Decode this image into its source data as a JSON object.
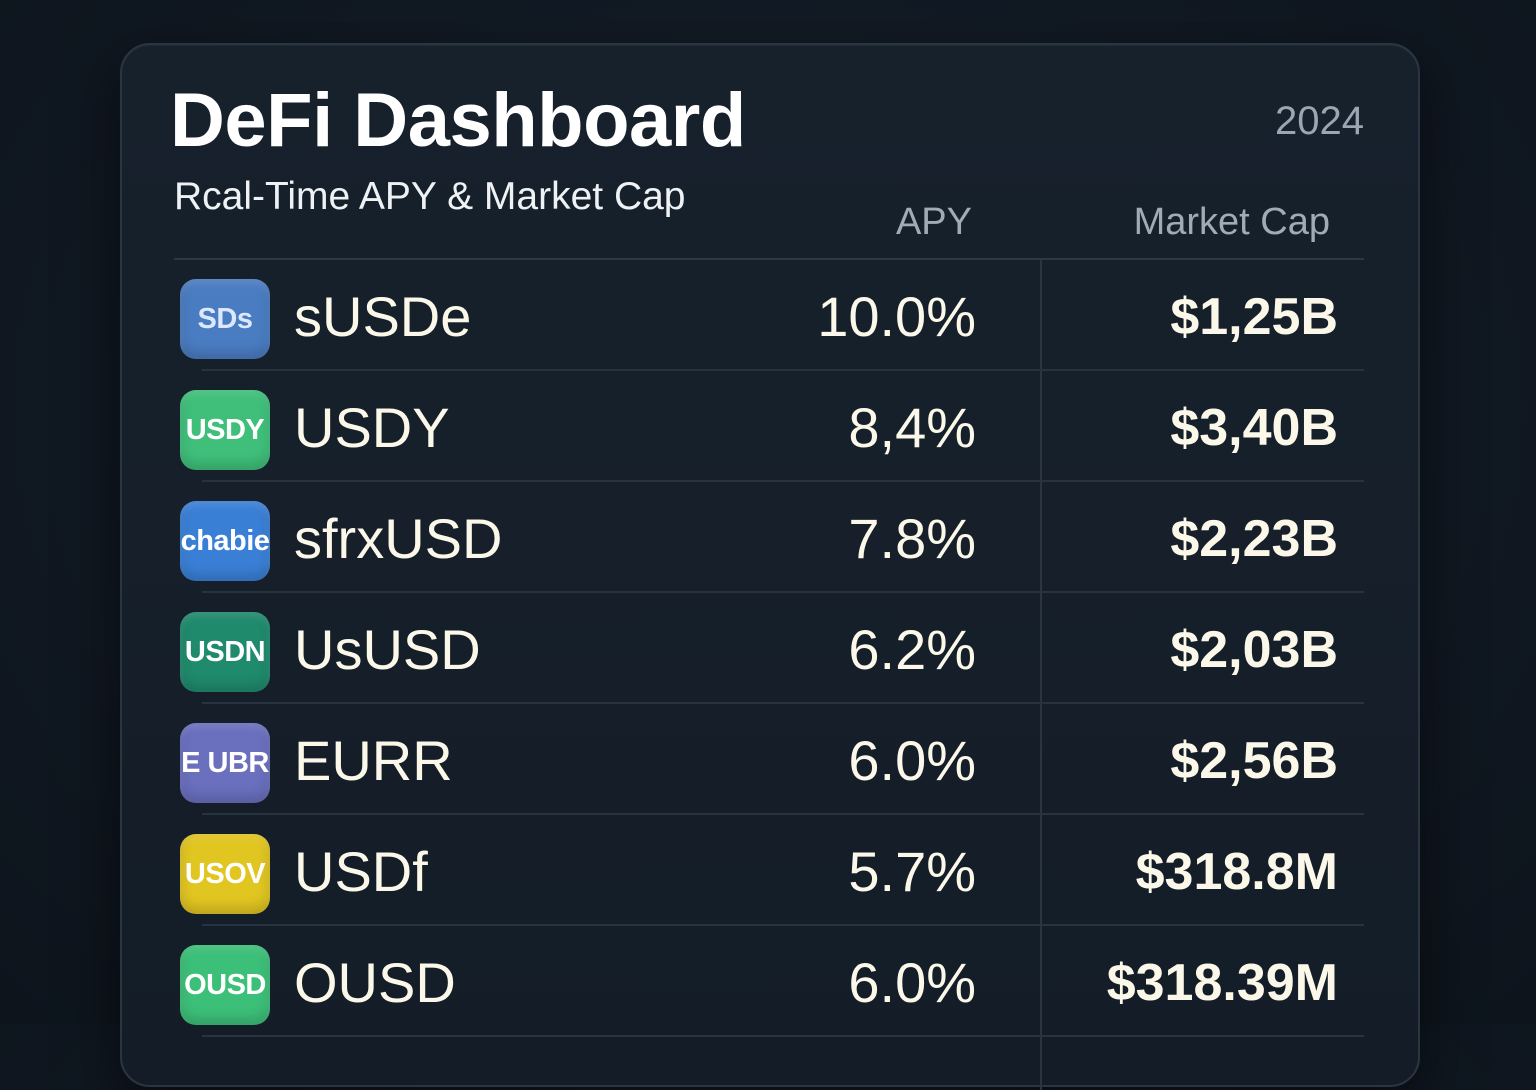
{
  "header": {
    "title": "DeFi Dashboard",
    "subtitle": "Rcal-Time APY & Market Cap",
    "year": "2024"
  },
  "columns": {
    "apy": "APY",
    "market_cap": "Market Cap"
  },
  "tokens": [
    {
      "icon_text": "SDs",
      "icon_color": "#4a7cc2",
      "icon_text_color": "#dbe8ff",
      "name": "sUSDe",
      "apy": "10.0%",
      "market_cap": "$1,25B"
    },
    {
      "icon_text": "USDY",
      "icon_color": "#3fbf7a",
      "icon_text_color": "#ffffff",
      "name": "USDY",
      "apy": "8,4%",
      "market_cap": "$3,40B"
    },
    {
      "icon_text": "chabie",
      "icon_color": "#3a7fd6",
      "icon_text_color": "#ffffff",
      "name": "sfrxUSD",
      "apy": "7.8%",
      "market_cap": "$2,23B"
    },
    {
      "icon_text": "USDN",
      "icon_color": "#1f8a6c",
      "icon_text_color": "#ffffff",
      "name": "UsUSD",
      "apy": "6.2%",
      "market_cap": "$2,03B"
    },
    {
      "icon_text": "E UBR",
      "icon_color": "#6a6fbe",
      "icon_text_color": "#ffffff",
      "name": "EURR",
      "apy": "6.0%",
      "market_cap": "$2,56B"
    },
    {
      "icon_text": "USOV",
      "icon_color": "#e1c521",
      "icon_text_color": "#ffffff",
      "name": "USDf",
      "apy": "5.7%",
      "market_cap": "$318.8M"
    },
    {
      "icon_text": "OUSD",
      "icon_color": "#3cbf78",
      "icon_text_color": "#ffffff",
      "name": "OUSD",
      "apy": "6.0%",
      "market_cap": "$318.39M"
    }
  ]
}
